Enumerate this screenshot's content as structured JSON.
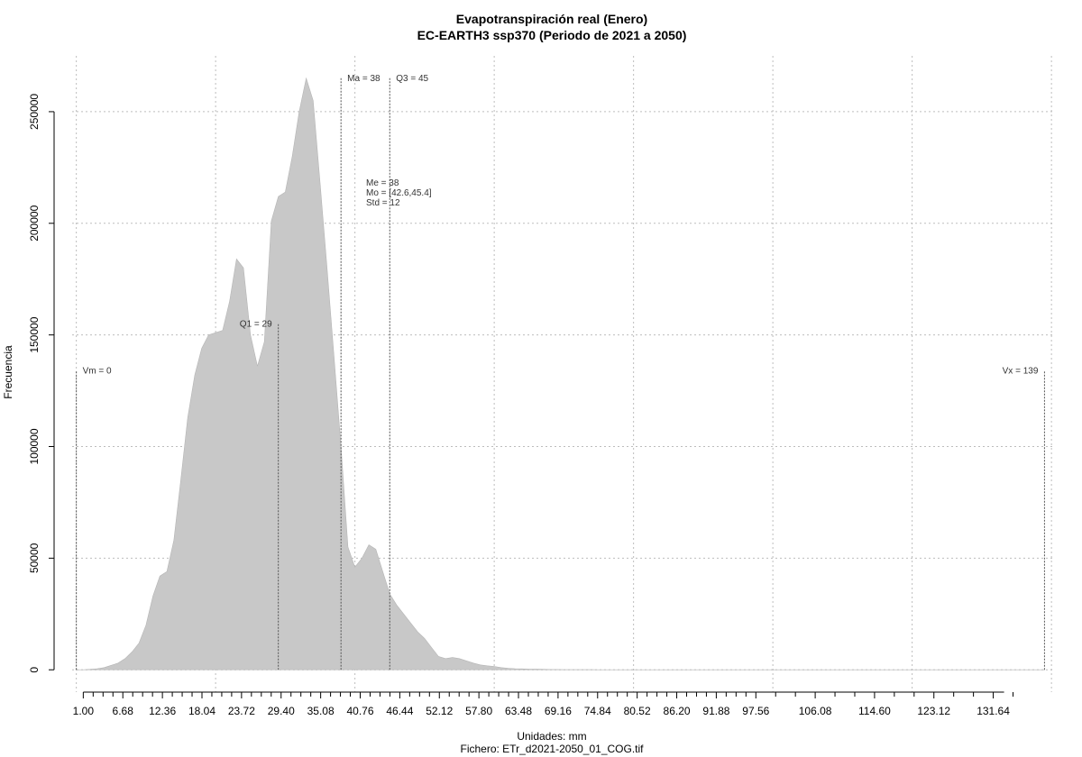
{
  "chart_data": {
    "type": "area",
    "title": "Evapotranspiración real (Enero)",
    "subtitle": "EC-EARTH3 ssp370 (Periodo de 2021 a 2050)",
    "xlabel": "Unidades: mm",
    "ylabel": "Frecuencia",
    "footer": "Fichero: ETr_d2021-2050_01_COG.tif",
    "xlim": [
      -0.6,
      140.5
    ],
    "ylim": [
      -10000,
      275000
    ],
    "grid": true,
    "fill_color": "#c8c8c8",
    "x_ticks": [
      1.0,
      6.68,
      12.36,
      18.04,
      23.72,
      29.4,
      35.08,
      40.76,
      46.44,
      52.12,
      57.8,
      63.48,
      69.16,
      74.84,
      80.52,
      86.2,
      91.88,
      97.56,
      106.08,
      114.6,
      123.12,
      131.64
    ],
    "x_tick_labels": [
      "1.00",
      "6.68",
      "12.36",
      "18.04",
      "23.72",
      "29.40",
      "35.08",
      "40.76",
      "46.44",
      "52.12",
      "57.80",
      "63.48",
      "69.16",
      "74.84",
      "80.52",
      "86.20",
      "91.88",
      "97.56",
      "106.08",
      "114.60",
      "123.12",
      "131.64"
    ],
    "x_minor_ticks": [
      2.42,
      3.84,
      5.26,
      8.1,
      9.52,
      10.94,
      13.78,
      15.2,
      16.62,
      19.46,
      20.88,
      22.3,
      25.14,
      26.56,
      27.98,
      30.82,
      32.24,
      33.66,
      36.5,
      37.92,
      39.34,
      42.18,
      43.6,
      45.02,
      47.86,
      49.28,
      50.7,
      53.54,
      54.96,
      56.38,
      59.22,
      60.64,
      62.06,
      64.9,
      66.32,
      67.74,
      70.58,
      72.0,
      73.42,
      76.26,
      77.68,
      79.1,
      81.94,
      83.36,
      84.78,
      87.62,
      89.04,
      90.46,
      93.3,
      94.72,
      96.14,
      100.4,
      103.24,
      108.92,
      111.76,
      117.44,
      120.28,
      125.96,
      128.8,
      134.48
    ],
    "x_grid": [
      0,
      20,
      40,
      60,
      80,
      100,
      120,
      140
    ],
    "y_ticks": [
      0,
      50000,
      100000,
      150000,
      200000,
      250000
    ],
    "y_tick_labels": [
      "0",
      "50000",
      "100000",
      "150000",
      "200000",
      "250000"
    ],
    "x": [
      0,
      1,
      2,
      3,
      4,
      5,
      6,
      7,
      8,
      9,
      10,
      11,
      12,
      13,
      14,
      15,
      16,
      17,
      18,
      19,
      20,
      21,
      22,
      23,
      24,
      25,
      26,
      27,
      28,
      29,
      30,
      31,
      32,
      33,
      34,
      35,
      36,
      37,
      38,
      39,
      40,
      41,
      42,
      43,
      44,
      45,
      46,
      47,
      48,
      49,
      50,
      51,
      52,
      53,
      54,
      55,
      56,
      57,
      58,
      59,
      60,
      61,
      62,
      63,
      64,
      65,
      66,
      67,
      68,
      69,
      70,
      71,
      72,
      73,
      74,
      75,
      76,
      77,
      78,
      80,
      82,
      84,
      86,
      88,
      90,
      95,
      100,
      105,
      110,
      120,
      130,
      139
    ],
    "y": [
      0,
      0,
      200,
      500,
      1000,
      2000,
      3000,
      5000,
      8000,
      12000,
      20000,
      33000,
      42000,
      44000,
      58000,
      85000,
      113000,
      132000,
      144000,
      150000,
      151000,
      152000,
      165000,
      184000,
      180000,
      150000,
      136000,
      147000,
      201000,
      212000,
      214000,
      230000,
      250000,
      265000,
      255000,
      218000,
      180000,
      140000,
      100000,
      55000,
      46000,
      50000,
      56000,
      54000,
      44000,
      34000,
      29000,
      25000,
      21000,
      17000,
      14000,
      10000,
      6000,
      5000,
      5500,
      5000,
      4000,
      3000,
      2200,
      1800,
      1500,
      1000,
      700,
      500,
      400,
      300,
      250,
      200,
      150,
      120,
      100,
      80,
      60,
      50,
      40,
      30,
      25,
      20,
      15,
      10,
      8,
      5,
      4,
      3,
      2,
      1,
      1,
      0,
      0,
      0,
      0,
      0
    ],
    "vlines": [
      {
        "x": 0,
        "y": 134000,
        "label": "Vm = 0",
        "anchor": "start"
      },
      {
        "x": 29,
        "y": 155000,
        "label": "Q1 = 29",
        "anchor": "end"
      },
      {
        "x": 38,
        "y": 265000,
        "label": "Ma = 38",
        "anchor": "start"
      },
      {
        "x": 45,
        "y": 265000,
        "label": "Q3 = 45",
        "anchor": "start"
      },
      {
        "x": 139,
        "y": 134000,
        "label": "Vx = 139",
        "anchor": "end"
      }
    ],
    "stats_labels": [
      "Me = 38",
      "Mo = [42.6,45.4]",
      "Std = 12"
    ]
  }
}
